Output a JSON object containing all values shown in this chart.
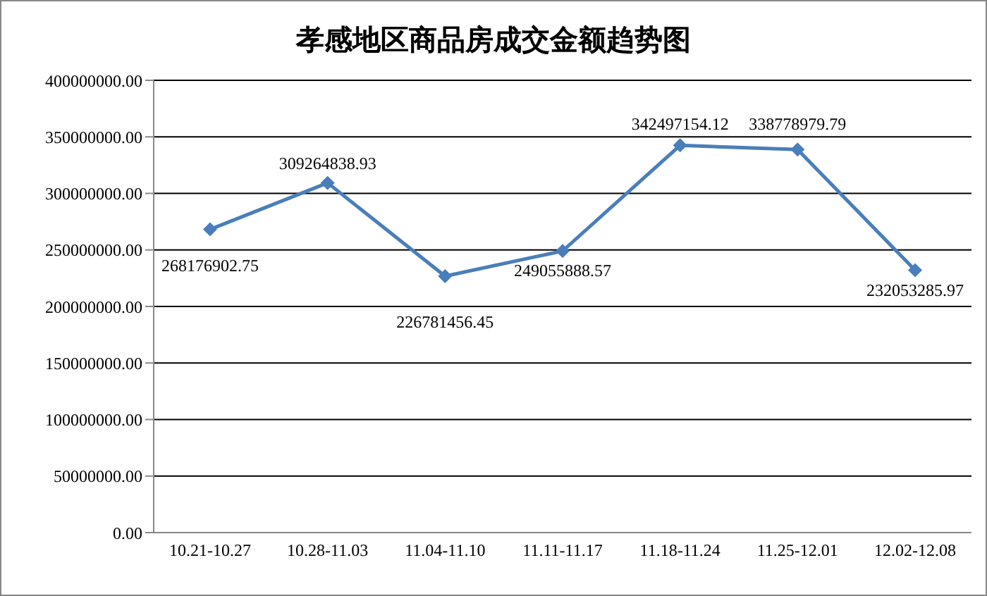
{
  "chart_data": {
    "type": "line",
    "title": "孝感地区商品房成交金额趋势图",
    "categories": [
      "10.21-10.27",
      "10.28-11.03",
      "11.04-11.10",
      "11.11-11.17",
      "11.18-11.24",
      "11.25-12.01",
      "12.02-12.08"
    ],
    "series": [
      {
        "color": "#4a7ebb",
        "values": [
          268176902.75,
          309264838.93,
          226781456.45,
          249055888.57,
          342497154.12,
          338778979.79,
          232053285.97
        ]
      }
    ],
    "ylim": [
      0,
      400000000
    ],
    "yticks": [
      {
        "value": 0,
        "label": "0.00"
      },
      {
        "value": 50000000,
        "label": "50000000.00"
      },
      {
        "value": 100000000,
        "label": "100000000.00"
      },
      {
        "value": 150000000,
        "label": "150000000.00"
      },
      {
        "value": 200000000,
        "label": "200000000.00"
      },
      {
        "value": 250000000,
        "label": "250000000.00"
      },
      {
        "value": 300000000,
        "label": "300000000.00"
      },
      {
        "value": 350000000,
        "label": "350000000.00"
      },
      {
        "value": 400000000,
        "label": "400000000.00"
      }
    ],
    "grid": "y",
    "legend": false,
    "marker": "diamond",
    "line_style": "solid",
    "data_labels": true
  }
}
